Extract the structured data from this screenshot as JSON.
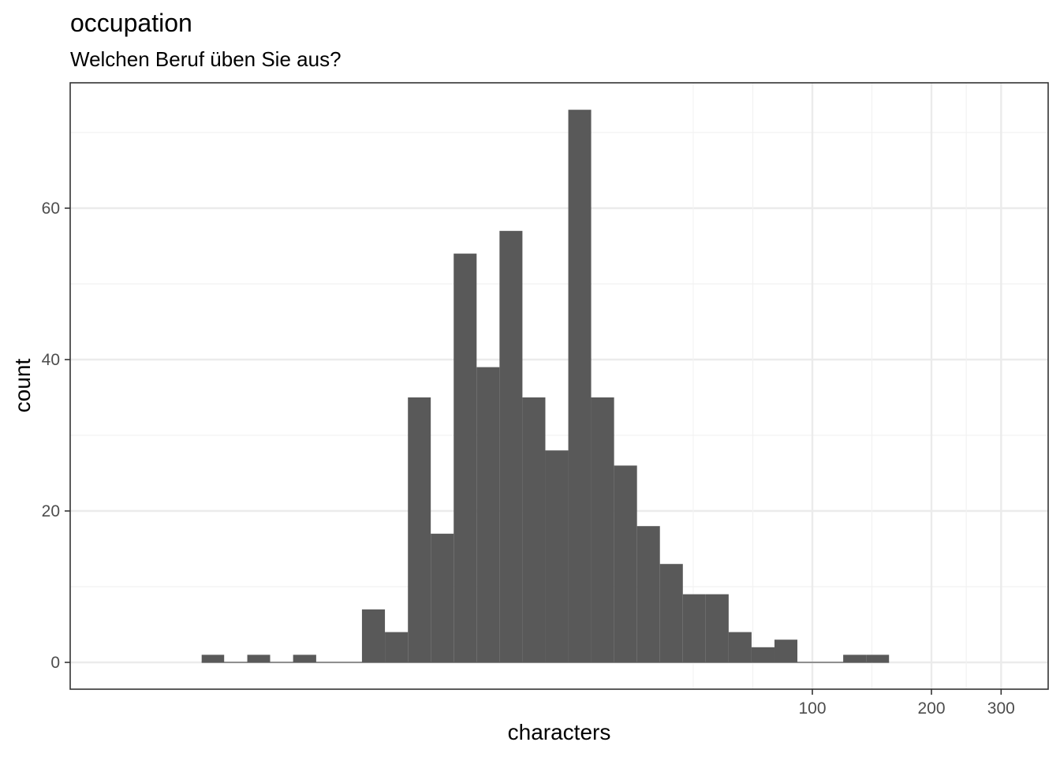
{
  "chart_data": {
    "type": "bar",
    "title": "occupation",
    "subtitle": "Welchen Beruf üben Sie aus?",
    "xlabel": "characters",
    "ylabel": "count",
    "x_scale": "log10",
    "x_ticks": [
      100,
      200,
      300
    ],
    "y_ticks": [
      0,
      20,
      40,
      60
    ],
    "ylim": [
      0,
      73
    ],
    "grid": true,
    "bins": [
      {
        "x_start": 2.86,
        "x_end": 3.26,
        "count": 1
      },
      {
        "x_start": 3.26,
        "x_end": 3.73,
        "count": 0
      },
      {
        "x_start": 3.73,
        "x_end": 4.26,
        "count": 1
      },
      {
        "x_start": 4.26,
        "x_end": 4.87,
        "count": 0
      },
      {
        "x_start": 4.87,
        "x_end": 5.57,
        "count": 1
      },
      {
        "x_start": 5.57,
        "x_end": 6.36,
        "count": 0
      },
      {
        "x_start": 6.36,
        "x_end": 7.27,
        "count": 0
      },
      {
        "x_start": 7.27,
        "x_end": 8.31,
        "count": 7
      },
      {
        "x_start": 8.31,
        "x_end": 9.5,
        "count": 4
      },
      {
        "x_start": 9.5,
        "x_end": 10.85,
        "count": 35
      },
      {
        "x_start": 10.85,
        "x_end": 12.4,
        "count": 17
      },
      {
        "x_start": 12.4,
        "x_end": 14.17,
        "count": 54
      },
      {
        "x_start": 14.17,
        "x_end": 16.19,
        "count": 39
      },
      {
        "x_start": 16.19,
        "x_end": 18.5,
        "count": 57
      },
      {
        "x_start": 18.5,
        "x_end": 21.14,
        "count": 35
      },
      {
        "x_start": 21.14,
        "x_end": 24.16,
        "count": 28
      },
      {
        "x_start": 24.16,
        "x_end": 27.6,
        "count": 73
      },
      {
        "x_start": 27.6,
        "x_end": 31.54,
        "count": 35
      },
      {
        "x_start": 31.54,
        "x_end": 36.04,
        "count": 26
      },
      {
        "x_start": 36.04,
        "x_end": 41.18,
        "count": 18
      },
      {
        "x_start": 41.18,
        "x_end": 47.06,
        "count": 13
      },
      {
        "x_start": 47.06,
        "x_end": 53.77,
        "count": 9
      },
      {
        "x_start": 53.77,
        "x_end": 61.44,
        "count": 9
      },
      {
        "x_start": 61.44,
        "x_end": 70.2,
        "count": 4
      },
      {
        "x_start": 70.2,
        "x_end": 80.22,
        "count": 2
      },
      {
        "x_start": 80.22,
        "x_end": 91.66,
        "count": 3
      },
      {
        "x_start": 91.66,
        "x_end": 104.73,
        "count": 0
      },
      {
        "x_start": 104.73,
        "x_end": 119.67,
        "count": 0
      },
      {
        "x_start": 119.67,
        "x_end": 136.74,
        "count": 1
      },
      {
        "x_start": 136.74,
        "x_end": 156.24,
        "count": 1
      }
    ],
    "colors": {
      "bar": "#595959",
      "grid_major": "#ebebeb",
      "grid_minor": "#f2f2f2",
      "panel_border": "#333333"
    }
  }
}
